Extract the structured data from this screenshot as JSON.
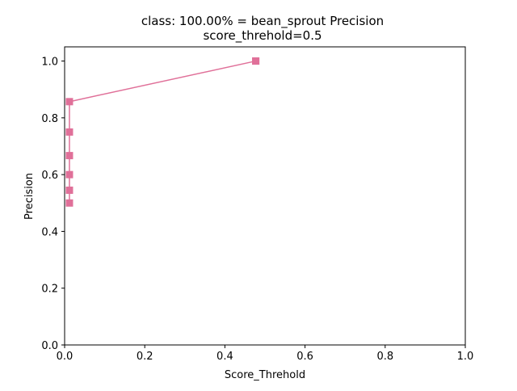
{
  "chart_data": {
    "type": "line",
    "title": "class: 100.00% = bean_sprout Precision",
    "subtitle": "score_threhold=0.5",
    "xlabel": "Score_Threhold",
    "ylabel": "Precision",
    "xlim": [
      0.0,
      1.0
    ],
    "ylim": [
      0.0,
      1.05
    ],
    "xticks": [
      "0.0",
      "0.2",
      "0.4",
      "0.6",
      "0.8",
      "1.0"
    ],
    "yticks": [
      "0.0",
      "0.2",
      "0.4",
      "0.6",
      "0.8",
      "1.0"
    ],
    "grid": false,
    "series": [
      {
        "color": "#e07099",
        "marker": "square",
        "x": [
          0.477,
          0.477,
          0.012,
          0.012,
          0.012,
          0.012,
          0.012,
          0.012
        ],
        "y": [
          1.0,
          1.0,
          0.857,
          0.75,
          0.667,
          0.6,
          0.545,
          0.5
        ]
      }
    ]
  }
}
